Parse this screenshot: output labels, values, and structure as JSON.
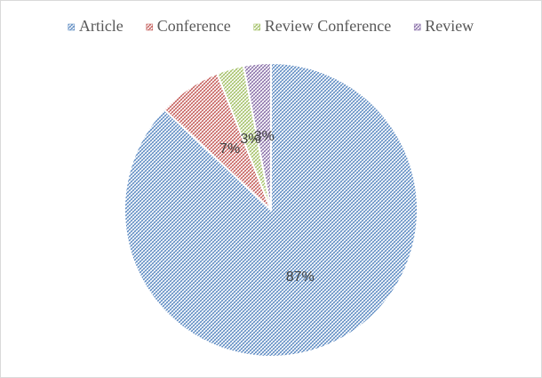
{
  "chart_data": {
    "type": "pie",
    "categories": [
      "Article",
      "Conference",
      "Review Conference",
      "Review"
    ],
    "values": [
      87,
      7,
      3,
      3
    ],
    "value_labels": [
      "87%",
      "7%",
      "3%",
      "3%"
    ],
    "colors": [
      "#4f81bd",
      "#c0504d",
      "#9bbb59",
      "#8064a2"
    ],
    "legend": "top"
  }
}
